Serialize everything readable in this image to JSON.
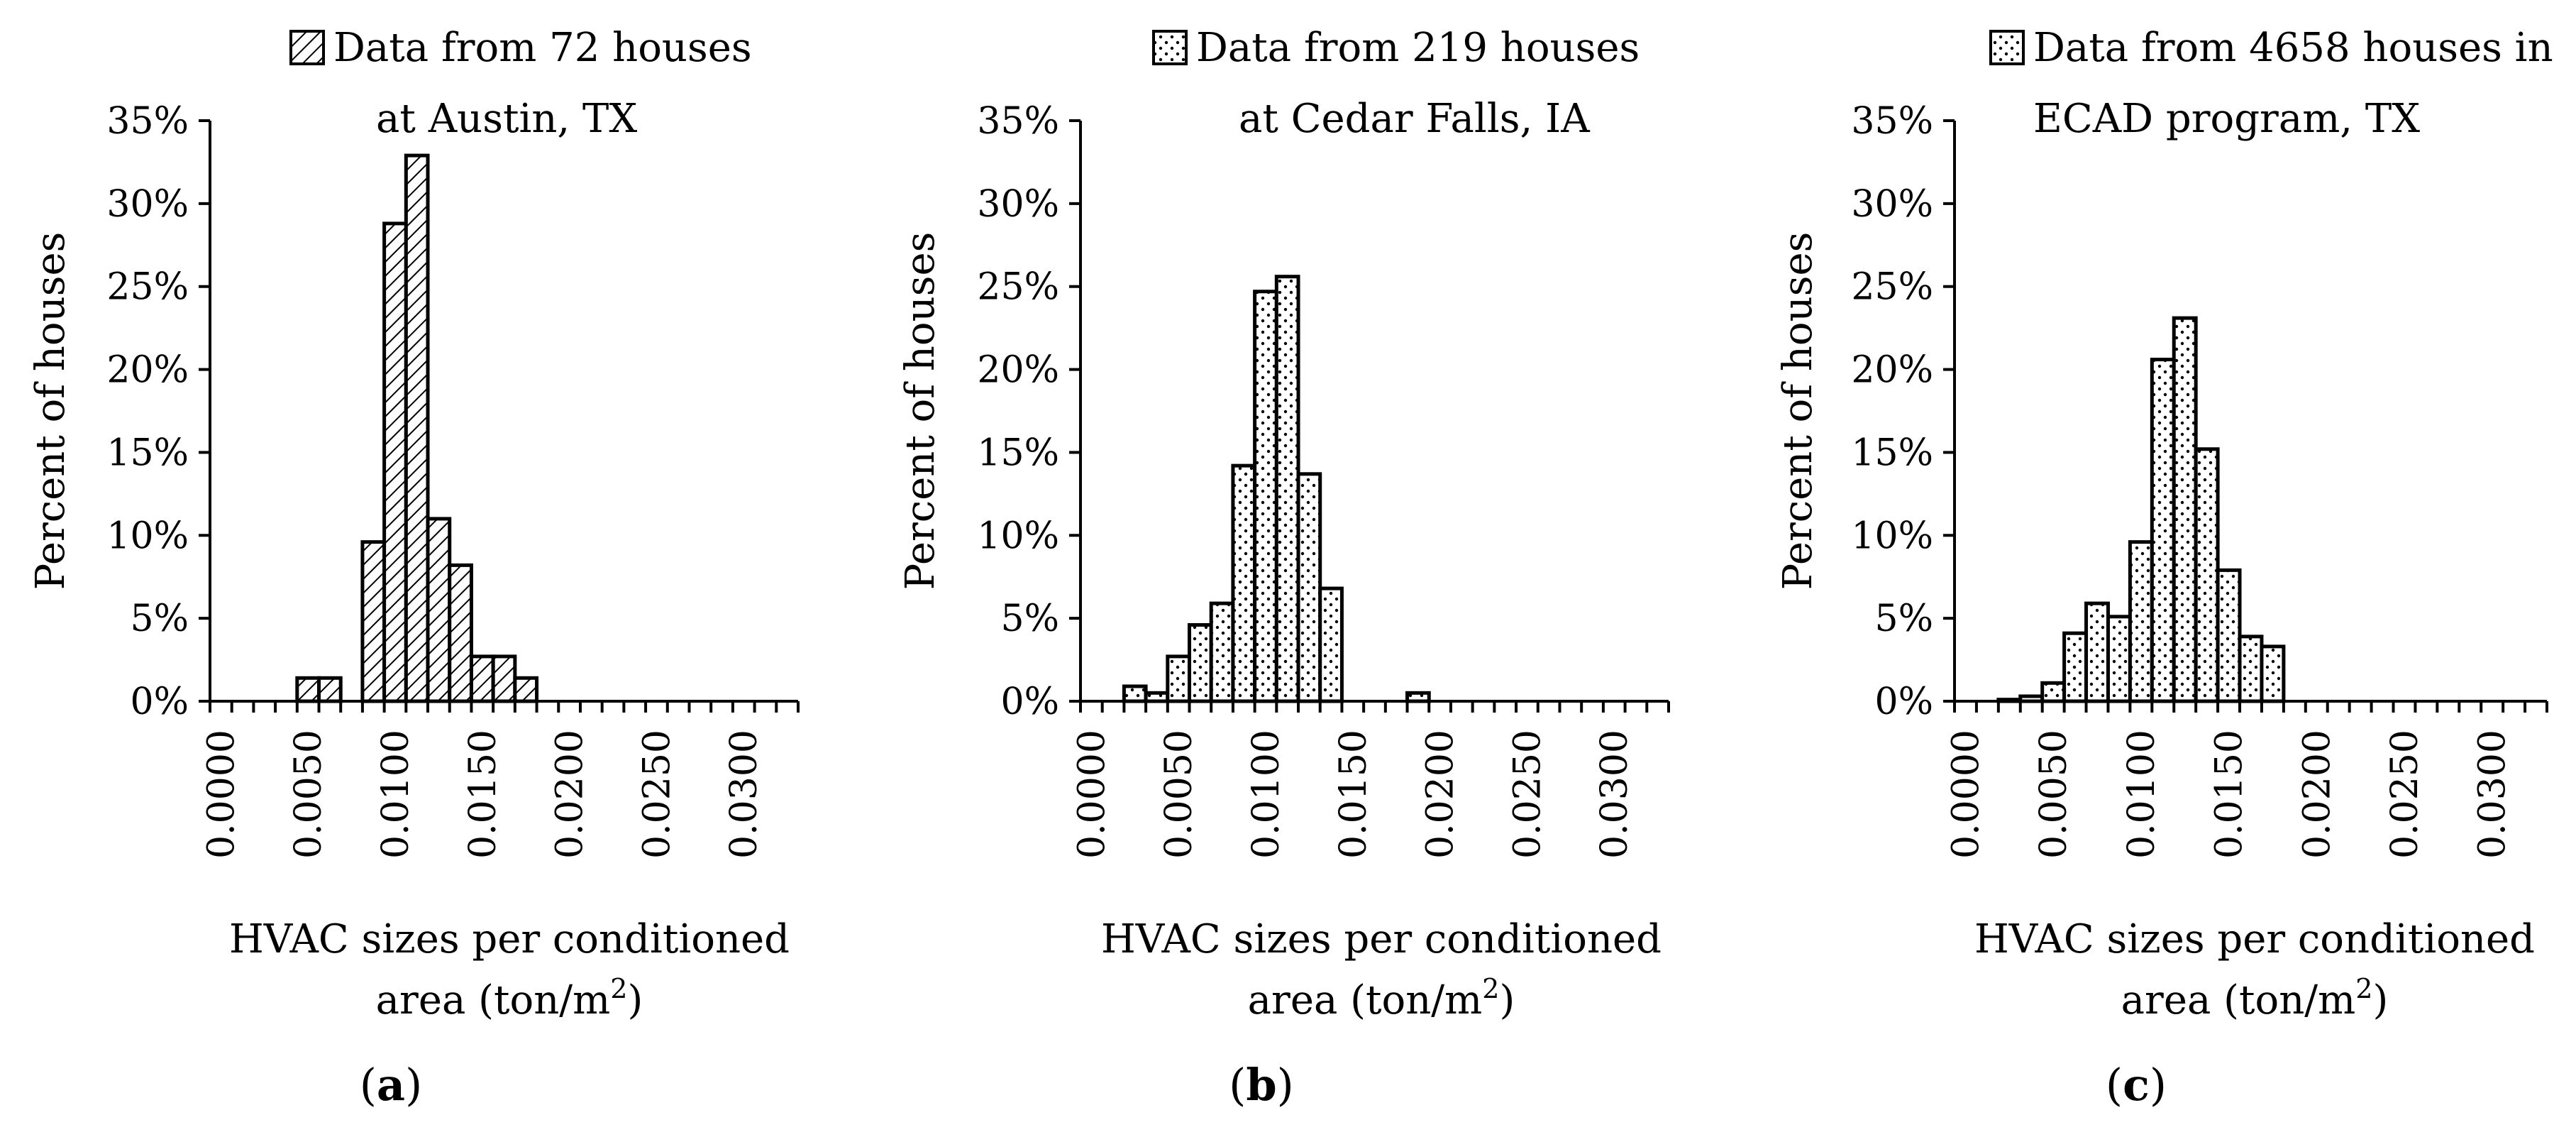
{
  "chart_data": [
    {
      "type": "bar",
      "panel_label": "a",
      "title": "",
      "legend": {
        "line1": "Data from 72 houses",
        "line2": "at Austin, TX",
        "pattern": "diagonal-hatch"
      },
      "ylabel": "Percent of houses",
      "xlabel_line1": "HVAC sizes per conditioned",
      "xlabel_line2_prefix": "area (ton/m",
      "xlabel_sup": "2",
      "xlabel_line2_suffix": ")",
      "bin_width": 0.00125,
      "x_start": 0,
      "xlim": [
        0,
        0.03375
      ],
      "ylim": [
        0,
        35
      ],
      "x_tick_values": [
        0,
        0.005,
        0.01,
        0.015,
        0.02,
        0.025,
        0.03
      ],
      "x_tick_labels": [
        "0.0000",
        "0.0050",
        "0.0100",
        "0.0150",
        "0.0200",
        "0.0250",
        "0.0300"
      ],
      "y_tick_values": [
        0,
        5,
        10,
        15,
        20,
        25,
        30,
        35
      ],
      "y_tick_labels": [
        "0%",
        "5%",
        "10%",
        "15%",
        "20%",
        "25%",
        "30%",
        "35%"
      ],
      "values": [
        0,
        0,
        0,
        0,
        1.4,
        1.4,
        0,
        9.6,
        28.8,
        32.9,
        11.0,
        8.2,
        2.7,
        2.7,
        1.4,
        0
      ]
    },
    {
      "type": "bar",
      "panel_label": "b",
      "title": "",
      "legend": {
        "line1": "Data from 219 houses",
        "line2": "at Cedar Falls, IA",
        "pattern": "dots"
      },
      "ylabel": "Percent of houses",
      "xlabel_line1": "HVAC sizes per conditioned",
      "xlabel_line2_prefix": "area (ton/m",
      "xlabel_sup": "2",
      "xlabel_line2_suffix": ")",
      "bin_width": 0.00125,
      "x_start": 0,
      "xlim": [
        0,
        0.03375
      ],
      "ylim": [
        0,
        35
      ],
      "x_tick_values": [
        0,
        0.005,
        0.01,
        0.015,
        0.02,
        0.025,
        0.03
      ],
      "x_tick_labels": [
        "0.0000",
        "0.0050",
        "0.0100",
        "0.0150",
        "0.0200",
        "0.0250",
        "0.0300"
      ],
      "y_tick_values": [
        0,
        5,
        10,
        15,
        20,
        25,
        30,
        35
      ],
      "y_tick_labels": [
        "0%",
        "5%",
        "10%",
        "15%",
        "20%",
        "25%",
        "30%",
        "35%"
      ],
      "values": [
        0,
        0,
        0.9,
        0.5,
        2.7,
        4.6,
        5.9,
        14.2,
        24.7,
        25.6,
        13.7,
        6.8,
        0,
        0,
        0,
        0.5
      ]
    },
    {
      "type": "bar",
      "panel_label": "c",
      "title": "",
      "legend": {
        "line1": "Data from 4658 houses in",
        "line2": "ECAD program, TX",
        "pattern": "dots"
      },
      "ylabel": "Percent of houses",
      "xlabel_line1": "HVAC sizes per conditioned",
      "xlabel_line2_prefix": "area (ton/m",
      "xlabel_sup": "2",
      "xlabel_line2_suffix": ")",
      "bin_width": 0.00125,
      "x_start": 0,
      "xlim": [
        0,
        0.03375
      ],
      "ylim": [
        0,
        35
      ],
      "x_tick_values": [
        0,
        0.005,
        0.01,
        0.015,
        0.02,
        0.025,
        0.03
      ],
      "x_tick_labels": [
        "0.0000",
        "0.0050",
        "0.0100",
        "0.0150",
        "0.0200",
        "0.0250",
        "0.0300"
      ],
      "y_tick_values": [
        0,
        5,
        10,
        15,
        20,
        25,
        30,
        35
      ],
      "y_tick_labels": [
        "0%",
        "5%",
        "10%",
        "15%",
        "20%",
        "25%",
        "30%",
        "35%"
      ],
      "values": [
        0,
        0,
        0.1,
        0.3,
        1.1,
        4.1,
        5.9,
        5.1,
        9.6,
        20.6,
        23.1,
        15.2,
        7.9,
        3.9,
        3.3,
        0
      ]
    }
  ]
}
